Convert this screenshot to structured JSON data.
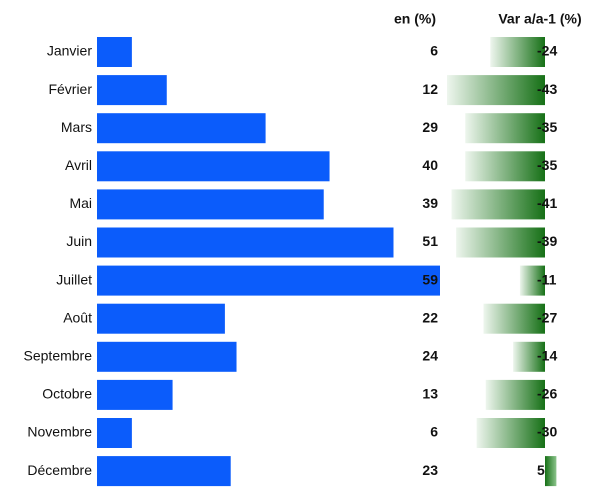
{
  "chart_data": {
    "type": "bar",
    "categories": [
      "Janvier",
      "Février",
      "Mars",
      "Avril",
      "Mai",
      "Juin",
      "Juillet",
      "Août",
      "Septembre",
      "Octobre",
      "Novembre",
      "Décembre"
    ],
    "series": [
      {
        "name": "en (%)",
        "color": "#0b5cfb",
        "values": [
          6,
          12,
          29,
          40,
          39,
          51,
          59,
          22,
          24,
          13,
          6,
          23
        ]
      },
      {
        "name": "Var a/a-1 (%)",
        "color": "#1a7a1a",
        "values": [
          -24,
          -43,
          -35,
          -35,
          -41,
          -39,
          -11,
          -27,
          -14,
          -26,
          -30,
          5
        ]
      }
    ]
  }
}
